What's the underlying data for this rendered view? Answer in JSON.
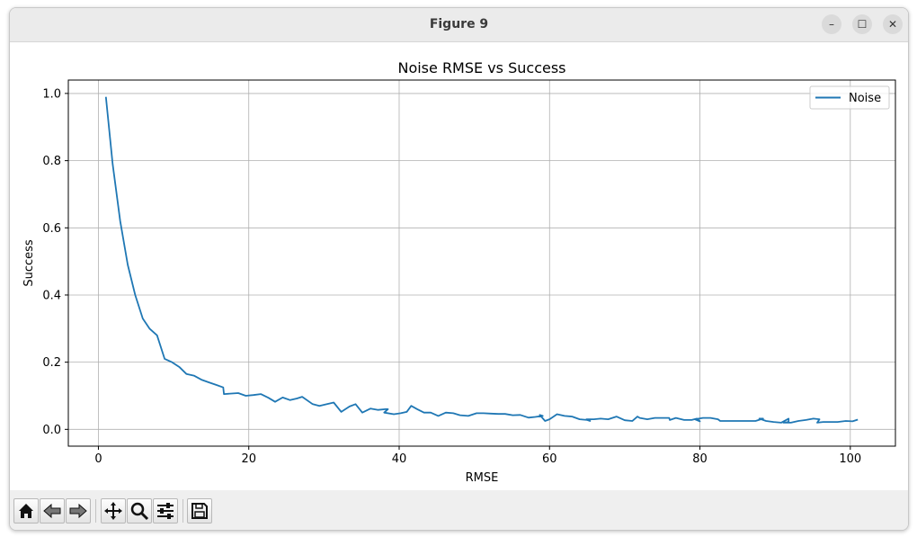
{
  "window": {
    "title": "Figure 9"
  },
  "window_controls": {
    "minimize": "–",
    "maximize": "☐",
    "close": "✕"
  },
  "toolbar": {
    "icons": [
      "home-icon",
      "back-icon",
      "forward-icon",
      "pan-icon",
      "zoom-icon",
      "configure-subplots-icon",
      "save-icon"
    ]
  },
  "colors": {
    "series": "#1f77b4",
    "grid": "#b0b0b0",
    "titlebar": "#ebebeb",
    "toolbar": "#efefef"
  },
  "chart_data": {
    "type": "line",
    "title": "Noise RMSE vs Success",
    "xlabel": "RMSE",
    "ylabel": "Success",
    "xlim": [
      -4,
      106
    ],
    "ylim": [
      -0.05,
      1.04
    ],
    "xticks": [
      0,
      20,
      40,
      60,
      80,
      100
    ],
    "xtick_labels": [
      "0",
      "20",
      "40",
      "60",
      "80",
      "100"
    ],
    "yticks": [
      0.0,
      0.2,
      0.4,
      0.6,
      0.8,
      1.0
    ],
    "ytick_labels": [
      "0.0",
      "0.2",
      "0.4",
      "0.6",
      "0.8",
      "1.0"
    ],
    "grid": true,
    "legend": "top-right",
    "series": [
      {
        "name": "Noise",
        "color": "#1f77b4",
        "x": [
          1.0,
          1.9,
          2.9,
          3.9,
          4.9,
          5.9,
          6.8,
          7.8,
          8.8,
          9.8,
          10.8,
          11.7,
          12.7,
          13.7,
          14.7,
          15.7,
          16.6,
          16.7,
          18.6,
          19.6,
          20.6,
          21.6,
          22.6,
          23.5,
          24.5,
          25.5,
          26.4,
          27.1,
          28.5,
          29.4,
          30.4,
          31.3,
          32.3,
          33.4,
          34.2,
          35.1,
          36.2,
          37.2,
          38.2,
          38.5,
          38.0,
          39.3,
          40.2,
          41.0,
          41.6,
          42.4,
          43.3,
          44.2,
          45.2,
          46.2,
          47.2,
          48.1,
          49.2,
          50.3,
          51.2,
          52.2,
          53.2,
          54.1,
          55.1,
          56.1,
          57.2,
          58.1,
          59.1,
          58.7,
          59.4,
          60.0,
          61.0,
          62.0,
          63.0,
          64.0,
          65.0,
          65.4,
          64.9,
          65.9,
          66.8,
          67.8,
          68.9,
          69.7,
          70.0,
          71.0,
          71.7,
          72.0,
          73.0,
          74.0,
          74.9,
          75.9,
          76.0,
          76.8,
          77.9,
          78.9,
          79.6,
          80.0,
          79.3,
          80.4,
          81.4,
          82.4,
          82.7,
          83.5,
          84.5,
          85.5,
          86.4,
          87.4,
          88.4,
          87.9,
          88.8,
          89.8,
          90.8,
          91.8,
          91.8,
          91.1,
          92.1,
          93.1,
          94.1,
          95.1,
          95.9,
          95.6,
          96.4,
          97.4,
          98.3,
          99.4,
          100.3,
          101.0
        ],
        "y": [
          0.99,
          0.79,
          0.62,
          0.49,
          0.4,
          0.33,
          0.3,
          0.28,
          0.21,
          0.2,
          0.185,
          0.165,
          0.16,
          0.148,
          0.14,
          0.132,
          0.125,
          0.105,
          0.108,
          0.1,
          0.102,
          0.105,
          0.094,
          0.082,
          0.095,
          0.087,
          0.092,
          0.097,
          0.075,
          0.07,
          0.075,
          0.08,
          0.052,
          0.068,
          0.075,
          0.05,
          0.062,
          0.058,
          0.06,
          0.06,
          0.05,
          0.045,
          0.048,
          0.052,
          0.07,
          0.06,
          0.05,
          0.05,
          0.04,
          0.05,
          0.048,
          0.042,
          0.04,
          0.048,
          0.048,
          0.047,
          0.046,
          0.046,
          0.042,
          0.043,
          0.035,
          0.037,
          0.04,
          0.043,
          0.025,
          0.03,
          0.045,
          0.04,
          0.038,
          0.03,
          0.028,
          0.025,
          0.03,
          0.03,
          0.032,
          0.03,
          0.038,
          0.03,
          0.027,
          0.025,
          0.038,
          0.034,
          0.03,
          0.034,
          0.034,
          0.034,
          0.028,
          0.034,
          0.028,
          0.028,
          0.032,
          0.024,
          0.03,
          0.034,
          0.034,
          0.03,
          0.025,
          0.025,
          0.025,
          0.025,
          0.025,
          0.025,
          0.032,
          0.032,
          0.025,
          0.022,
          0.02,
          0.032,
          0.022,
          0.02,
          0.02,
          0.025,
          0.028,
          0.032,
          0.03,
          0.02,
          0.022,
          0.022,
          0.022,
          0.025,
          0.024,
          0.029
        ]
      }
    ]
  }
}
